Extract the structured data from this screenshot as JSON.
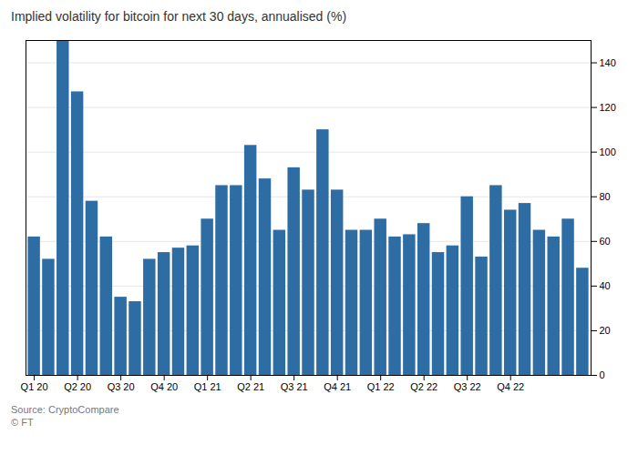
{
  "chart_data": {
    "type": "bar",
    "title": "Implied volatility for bitcoin for next 30 days, annualised (%)",
    "categories": [
      "Q1 20",
      null,
      null,
      "Q2 20",
      null,
      null,
      "Q3 20",
      null,
      null,
      "Q4 20",
      null,
      null,
      "Q1 21",
      null,
      null,
      "Q2 21",
      null,
      null,
      "Q3 21",
      null,
      null,
      "Q4 21",
      null,
      null,
      "Q1 22",
      null,
      null,
      "Q2 22",
      null,
      null,
      "Q3 22",
      null,
      null,
      "Q4 22",
      null,
      null,
      null,
      null,
      null
    ],
    "values": [
      62,
      52,
      150,
      127,
      78,
      62,
      35,
      33,
      52,
      55,
      57,
      58,
      70,
      85,
      85,
      103,
      88,
      65,
      93,
      83,
      110,
      83,
      65,
      65,
      70,
      62,
      63,
      68,
      55,
      58,
      80,
      53,
      85,
      74,
      77,
      65,
      62,
      70,
      48
    ],
    "color": "#2E6DA4",
    "ylim": [
      0,
      150
    ],
    "yticks": [
      0,
      20,
      40,
      60,
      80,
      100,
      120,
      140
    ],
    "grid": true,
    "annotations": [
      "Source: CryptoCompare",
      "© FT"
    ]
  }
}
